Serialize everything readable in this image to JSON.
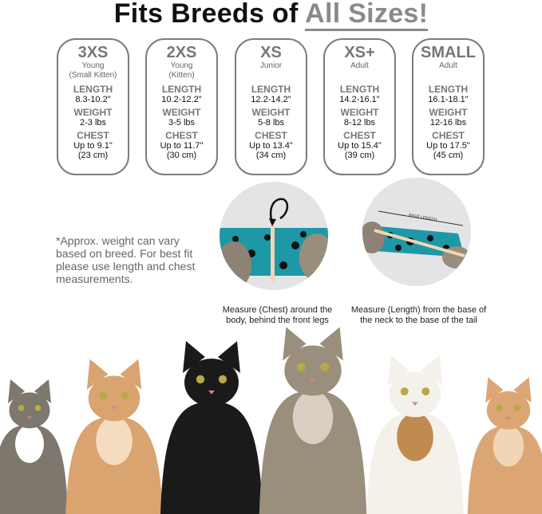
{
  "title": {
    "prefix": "Fits Breeds of ",
    "highlight": "All Sizes!"
  },
  "sizes": [
    {
      "size": "3XS",
      "age": "Young",
      "age2": "(Small Kitten)",
      "length": "8.3-10.2\"",
      "weight": "2-3 lbs",
      "chest": "Up to 9.1\"",
      "chest_cm": "(23 cm)"
    },
    {
      "size": "2XS",
      "age": "Young",
      "age2": "(Kitten)",
      "length": "10.2-12.2\"",
      "weight": "3-5 lbs",
      "chest": "Up to 11.7\"",
      "chest_cm": "(30 cm)"
    },
    {
      "size": "XS",
      "age": "Junior",
      "age2": "",
      "length": "12.2-14.2\"",
      "weight": "5-8 lbs",
      "chest": "Up to 13.4\"",
      "chest_cm": "(34 cm)"
    },
    {
      "size": "XS+",
      "age": "Adult",
      "age2": "",
      "length": "14.2-16.1\"",
      "weight": "8-12 lbs",
      "chest": "Up to 15.4\"",
      "chest_cm": "(39 cm)"
    },
    {
      "size": "SMALL",
      "age": "Adult",
      "age2": "",
      "length": "16.1-18.1\"",
      "weight": "12-16 lbs",
      "chest": "Up to 17.5\"",
      "chest_cm": "(45 cm)"
    }
  ],
  "labels": {
    "length": "LENGTH",
    "weight": "WEIGHT",
    "chest": "CHEST"
  },
  "note": "*Approx. weight can vary based on breed. For best fit please use length and chest measurements.",
  "measure": {
    "chest_caption": "Measure (Chest) around the body, behind the front legs",
    "length_caption": "Measure (Length) from the base of the neck to the base of the tail",
    "back_length_label": "BACK LENGTH"
  },
  "colors": {
    "garment": "#1e98a6",
    "accent_gray": "#8a8a8a"
  }
}
